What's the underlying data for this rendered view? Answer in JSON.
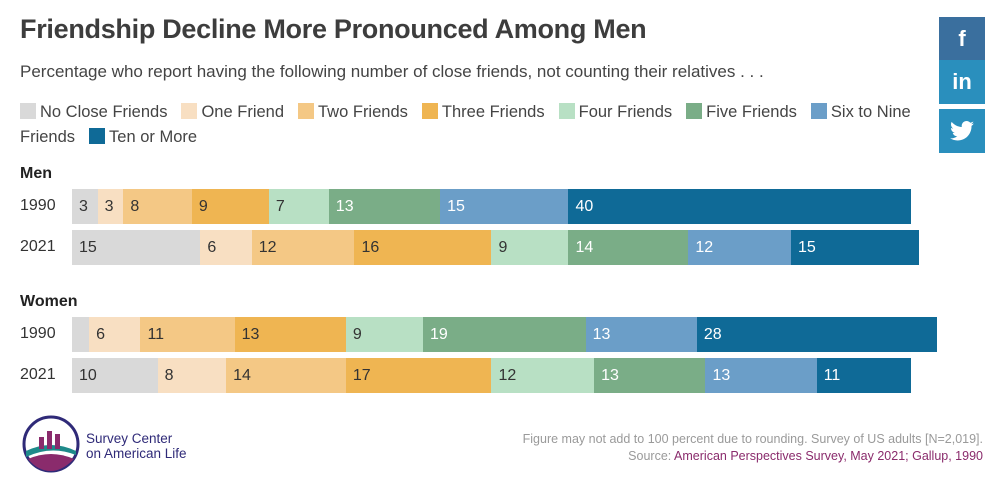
{
  "header": {
    "title": "Friendship Decline More Pronounced Among Men",
    "subtitle": "Percentage who report having the following number of close friends, not counting their relatives . . ."
  },
  "social": {
    "facebook": "f",
    "linkedin": "in",
    "twitter": "twitter"
  },
  "chart_data": {
    "type": "bar",
    "stacked": true,
    "orientation": "horizontal",
    "title": "Friendship Decline More Pronounced Among Men",
    "subtitle": "Percentage who report having the following number of close friends, not counting their relatives . . .",
    "legend_position": "top",
    "categories": [
      "No Close Friends",
      "One Friend",
      "Two Friends",
      "Three Friends",
      "Four Friends",
      "Five Friends",
      "Six to Nine Friends",
      "Ten or More"
    ],
    "category_colors": [
      "#d9d9d9",
      "#f8dfc2",
      "#f4c885",
      "#efb552",
      "#b8e0c4",
      "#7aad87",
      "#6b9ec8",
      "#0f6a97"
    ],
    "light_text_categories": [
      5,
      6,
      7
    ],
    "groups": [
      {
        "name": "Men",
        "rows": [
          {
            "year": "1990",
            "values": [
              3,
              3,
              8,
              9,
              7,
              13,
              15,
              40
            ]
          },
          {
            "year": "2021",
            "values": [
              15,
              6,
              12,
              16,
              9,
              14,
              12,
              15
            ]
          }
        ]
      },
      {
        "name": "Women",
        "rows": [
          {
            "year": "1990",
            "values": [
              2,
              6,
              11,
              13,
              9,
              19,
              13,
              28
            ],
            "hidden_labels": [
              0
            ]
          },
          {
            "year": "2021",
            "values": [
              10,
              8,
              14,
              17,
              12,
              13,
              13,
              11
            ]
          }
        ]
      }
    ],
    "xlim": [
      0,
      100
    ]
  },
  "footer": {
    "logo_line1": "Survey Center",
    "logo_line2": "on American Life",
    "note": "Figure may not add to 100 percent due to rounding. Survey of US adults [N=2,019].",
    "source_prefix": "Source: ",
    "source_link": "American Perspectives Survey, May 2021; Gallup, 1990"
  }
}
